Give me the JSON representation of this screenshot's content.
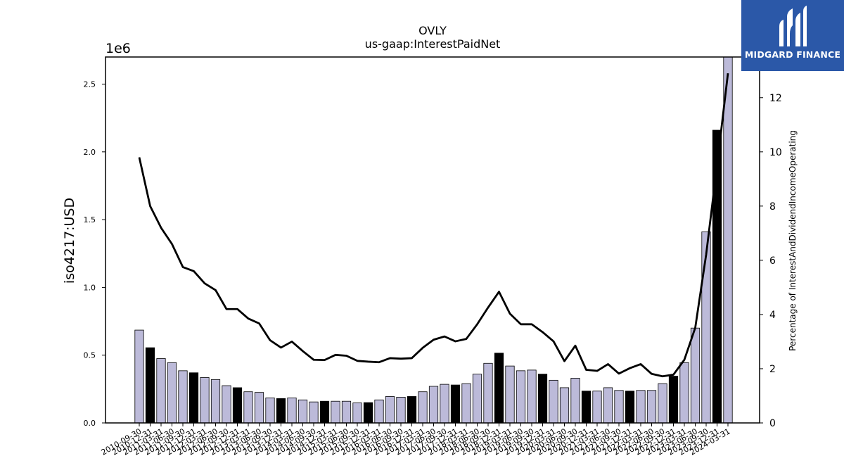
{
  "brand": {
    "name": "MIDGARD FINANCE",
    "logo_icon": "midgard-m-logo-icon",
    "background_color": "#2b58a8"
  },
  "chart_data": {
    "type": "bar",
    "title": "OVLY",
    "subtitle": "us-gaap:InterestPaidNet",
    "ylabel": "iso4217:USD",
    "y_scale_label": "1e6",
    "y2label": "Percentage of InterestAndDividendIncomeOperating",
    "ylim": [
      0,
      2700000
    ],
    "y2lim": [
      0,
      13.5
    ],
    "yticks": [
      "0.0",
      "0.5",
      "1.0",
      "1.5",
      "2.0",
      "2.5"
    ],
    "y2ticks": [
      "0",
      "2",
      "4",
      "6",
      "8",
      "10",
      "12"
    ],
    "bar_color_quarter": "#bcbad9",
    "bar_color_fy": "#000000",
    "line_color": "#000000",
    "categories": [
      "2010-09-30",
      "2010-12-31",
      "2011-03-31",
      "2011-06-30",
      "2011-09-30",
      "2011-12-31",
      "2012-03-31",
      "2012-06-30",
      "2012-09-30",
      "2012-12-31",
      "2013-03-31",
      "2013-06-30",
      "2013-09-30",
      "2013-12-31",
      "2014-03-31",
      "2014-06-30",
      "2014-09-30",
      "2014-12-31",
      "2015-03-31",
      "2015-06-30",
      "2015-09-30",
      "2015-12-31",
      "2016-03-31",
      "2016-06-30",
      "2016-09-30",
      "2016-12-31",
      "2017-03-31",
      "2017-06-30",
      "2017-09-30",
      "2017-12-31",
      "2018-03-31",
      "2018-06-30",
      "2018-09-30",
      "2018-12-31",
      "2019-03-31",
      "2019-06-30",
      "2019-09-30",
      "2019-12-31",
      "2020-03-31",
      "2020-06-30",
      "2020-09-30",
      "2020-12-31",
      "2021-03-31",
      "2021-06-30",
      "2021-09-30",
      "2021-12-31",
      "2022-03-31",
      "2022-06-30",
      "2022-09-30",
      "2022-12-31",
      "2023-03-31",
      "2023-06-30",
      "2023-09-30",
      "2023-12-31",
      "2024-03-31"
    ],
    "series": [
      {
        "type": "bar",
        "values": [
          685000,
          555000,
          475000,
          445000,
          385000,
          370000,
          335000,
          320000,
          275000,
          260000,
          230000,
          225000,
          185000,
          180000,
          185000,
          170000,
          155000,
          160000,
          160000,
          160000,
          148000,
          150000,
          170000,
          195000,
          190000,
          195000,
          230000,
          270000,
          285000,
          280000,
          290000,
          360000,
          440000,
          515000,
          420000,
          385000,
          390000,
          360000,
          315000,
          260000,
          330000,
          235000,
          235000,
          260000,
          240000,
          235000,
          240000,
          240000,
          290000,
          345000,
          445000,
          700000,
          1410000,
          2160000,
          2700000
        ],
        "highlight": [
          false,
          true,
          false,
          false,
          false,
          true,
          false,
          false,
          false,
          true,
          false,
          false,
          false,
          true,
          false,
          false,
          false,
          true,
          false,
          false,
          false,
          true,
          false,
          false,
          false,
          true,
          false,
          false,
          false,
          true,
          false,
          false,
          false,
          true,
          false,
          false,
          false,
          true,
          false,
          false,
          false,
          true,
          false,
          false,
          false,
          true,
          false,
          false,
          false,
          true,
          false,
          false,
          false,
          true,
          false
        ]
      },
      {
        "type": "line",
        "values": [
          9.8,
          8.0,
          7.2,
          6.6,
          5.75,
          5.6,
          5.15,
          4.9,
          4.2,
          4.2,
          3.85,
          3.67,
          3.05,
          2.78,
          3.0,
          2.65,
          2.33,
          2.32,
          2.51,
          2.48,
          2.29,
          2.26,
          2.24,
          2.39,
          2.37,
          2.39,
          2.77,
          3.07,
          3.19,
          3.01,
          3.1,
          3.64,
          4.26,
          4.84,
          4.03,
          3.64,
          3.64,
          3.35,
          3.01,
          2.28,
          2.85,
          1.96,
          1.92,
          2.17,
          1.82,
          2.02,
          2.17,
          1.81,
          1.72,
          1.78,
          2.33,
          3.51,
          6.21,
          9.5,
          12.9
        ]
      }
    ]
  }
}
